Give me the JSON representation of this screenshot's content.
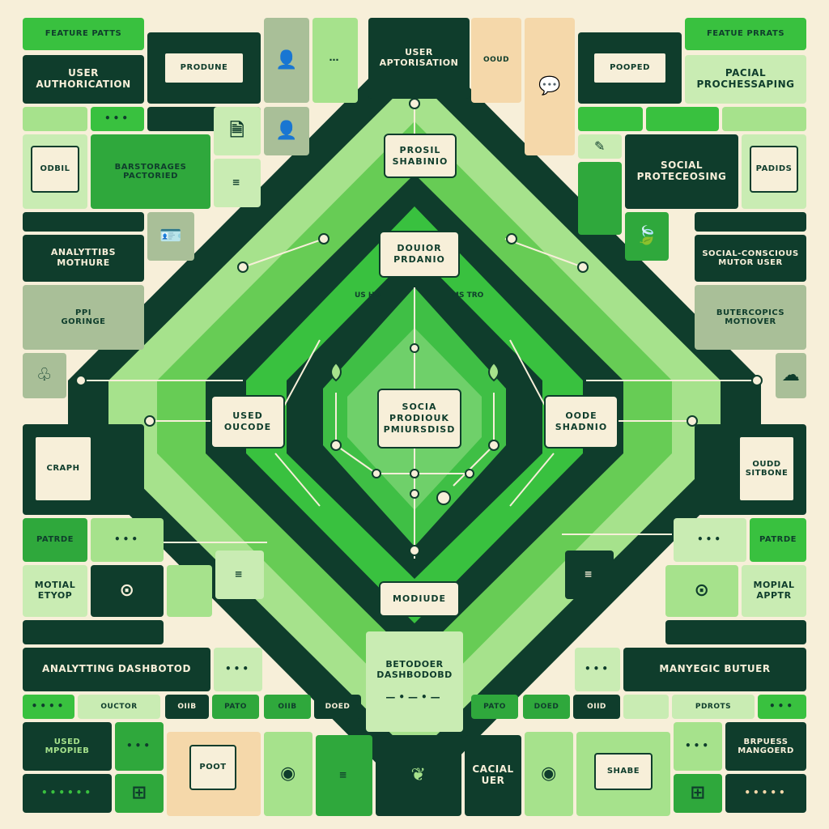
{
  "colors": {
    "background": "#f7efd9",
    "dark_green": "#0f3d2c",
    "green": "#2fa83c",
    "bright_green": "#39c13f",
    "light_green": "#a6e28c",
    "pale_green": "#c9ecb3",
    "sage": "#a9bf98",
    "peach": "#f5d8aa"
  },
  "header": {
    "top_left_tab": "FEATURE PATTS",
    "top_right_tab": "FEATUE PRRATS",
    "top_center_title": "USER\nAPTORISATION",
    "top_center_side": "OOUD"
  },
  "left_column": {
    "user_authentication": "USER\nAUTHORICATION",
    "produne": "PRODUNE",
    "odbil": "ODBIL",
    "banstorages_factored": "BARSTORAGES\nPACTORIED",
    "analytics_module": "ANALYTTIBS\nMOTHURE",
    "ppi_gorenge": "PPI\nGORINGE",
    "craph": "CRAPH",
    "factor": "PATRDE",
    "motial_etyop": "MOTIAL\nETYOP",
    "analytics_dashboard": "ANALYTTING   DASHBOTOD",
    "user_module": "USED\nMPOPIEB",
    "poot": "POOT"
  },
  "right_column": {
    "pacial_processing": "PACIAL\nPROCHESSAPING",
    "poorer": "POOPED",
    "social_protocessing": "SOCIAL\nPROTECEOSING",
    "padids": "PADIDS",
    "social_conscious": "SOCIAL-CONSCIOUS\nMUTOR USER",
    "butercopics": "BUTERCOPICS\nMOTIOVER",
    "oudd_sitbone": "OUDD\nSITBONE",
    "patrde": "PATRDE",
    "mopial_apptr": "MOPIAL\nAPPTR",
    "manyecic_butuer": "MANYEGIC    BUTUER",
    "brpuess_mangoerd": "BRPUESS\nMANGOERD",
    "shabe": "SHABE"
  },
  "hub": {
    "top_card": "PROSIL\nSHABINIO",
    "upper_card": "DOUIOR\nPRDANIO",
    "center_card": "SOCIA\nPRODIOUK\nPMIURSDISD",
    "left_card": "USED\nOUCODE",
    "right_card": "OODE\nSHADNIO",
    "bottom_card": "MODIUDE",
    "upper_left_tag": "US HO",
    "upper_right_tag": "MS TRO"
  },
  "bottom": {
    "center_title": "BETODOER\nDASHBODOBD",
    "cacial_user": "CACIAL\nUER",
    "row_labels": [
      "OUCTOR",
      "OIIB",
      "PATO",
      "OIIB",
      "DOED",
      "PATO",
      "DOED",
      "OIID",
      "PDROTS"
    ]
  }
}
